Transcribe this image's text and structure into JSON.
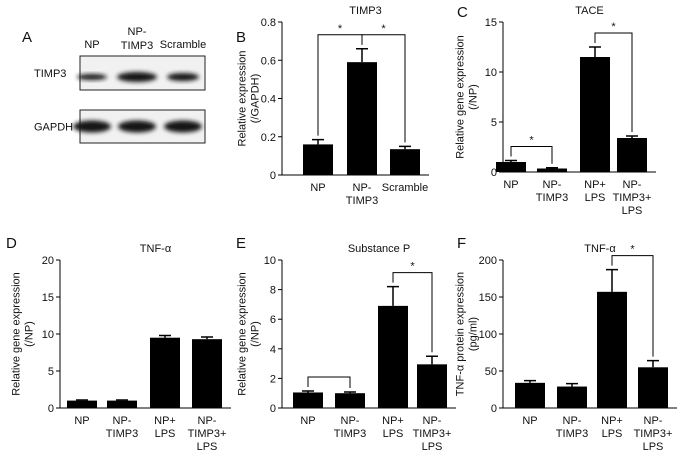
{
  "chart_data": [
    {
      "type": "blot",
      "panel_label": "A",
      "lanes": [
        "NP",
        "NP-\nTIMP3",
        "Scramble"
      ],
      "rows": [
        "TIMP3",
        "GAPDH"
      ]
    },
    {
      "type": "bar",
      "panel_label": "B",
      "title": "TIMP3",
      "ylabel": "Relative expression\n(/GAPDH)",
      "categories": [
        "NP",
        "NP-\nTIMP3",
        "Scramble"
      ],
      "values": [
        0.16,
        0.59,
        0.135
      ],
      "errors": [
        0.025,
        0.07,
        0.015
      ],
      "color": "#000000",
      "ylim": [
        0,
        0.8
      ],
      "yticks": [
        0,
        0.2,
        0.4,
        0.6,
        0.8
      ],
      "brackets": [
        {
          "between": [
            0,
            1
          ],
          "label": "*"
        },
        {
          "between": [
            1,
            2
          ],
          "label": "*"
        }
      ]
    },
    {
      "type": "bar",
      "panel_label": "C",
      "title": "TACE",
      "ylabel": "Relative gene expression\n(/NP)",
      "categories": [
        "NP",
        "NP-\nTIMP3",
        "NP+\nLPS",
        "NP-\nTIMP3+\nLPS"
      ],
      "values": [
        1.0,
        0.35,
        11.5,
        3.4
      ],
      "errors": [
        0.15,
        0.08,
        1.0,
        0.2
      ],
      "color": "#000000",
      "ylim": [
        0,
        15
      ],
      "yticks": [
        0,
        5,
        10,
        15
      ],
      "brackets": [
        {
          "between": [
            0,
            1
          ],
          "label": "*"
        },
        {
          "between": [
            2,
            3
          ],
          "label": "*"
        }
      ]
    },
    {
      "type": "bar",
      "panel_label": "D",
      "title": "TNF-α",
      "ylabel": "Relative gene expression\n(/NP)",
      "categories": [
        "NP",
        "NP-\nTIMP3",
        "NP+\nLPS",
        "NP-\nTIMP3+\nLPS"
      ],
      "values": [
        1.0,
        1.0,
        9.5,
        9.3
      ],
      "errors": [
        0.08,
        0.08,
        0.3,
        0.3
      ],
      "color": "#000000",
      "ylim": [
        0,
        20
      ],
      "yticks": [
        0,
        5,
        10,
        15,
        20
      ],
      "brackets": []
    },
    {
      "type": "bar",
      "panel_label": "E",
      "title": "Substance P",
      "ylabel": "Relative gene expression\n(/NP)",
      "categories": [
        "NP",
        "NP-\nTIMP3",
        "NP+\nLPS",
        "NP-\nTIMP3+\nLPS"
      ],
      "values": [
        1.05,
        1.0,
        6.9,
        2.95
      ],
      "errors": [
        0.1,
        0.08,
        1.3,
        0.55
      ],
      "color": "#000000",
      "ylim": [
        0,
        10
      ],
      "yticks": [
        0,
        2,
        4,
        6,
        8,
        10
      ],
      "brackets": [
        {
          "between": [
            0,
            1
          ]
        },
        {
          "between": [
            2,
            3
          ],
          "label": "*"
        }
      ]
    },
    {
      "type": "bar",
      "panel_label": "F",
      "title": "TNF-α",
      "ylabel": "TNF-α protein expression\n(pg/ml)",
      "categories": [
        "NP",
        "NP-\nTIMP3",
        "NP+\nLPS",
        "NP-\nTIMP3+\nLPS"
      ],
      "values": [
        34,
        29,
        157,
        55
      ],
      "errors": [
        3,
        4,
        30,
        9
      ],
      "color": "#000000",
      "ylim": [
        0,
        200
      ],
      "yticks": [
        0,
        50,
        100,
        150,
        200
      ],
      "brackets": [
        {
          "between": [
            2,
            3
          ],
          "label": "*"
        }
      ]
    }
  ]
}
